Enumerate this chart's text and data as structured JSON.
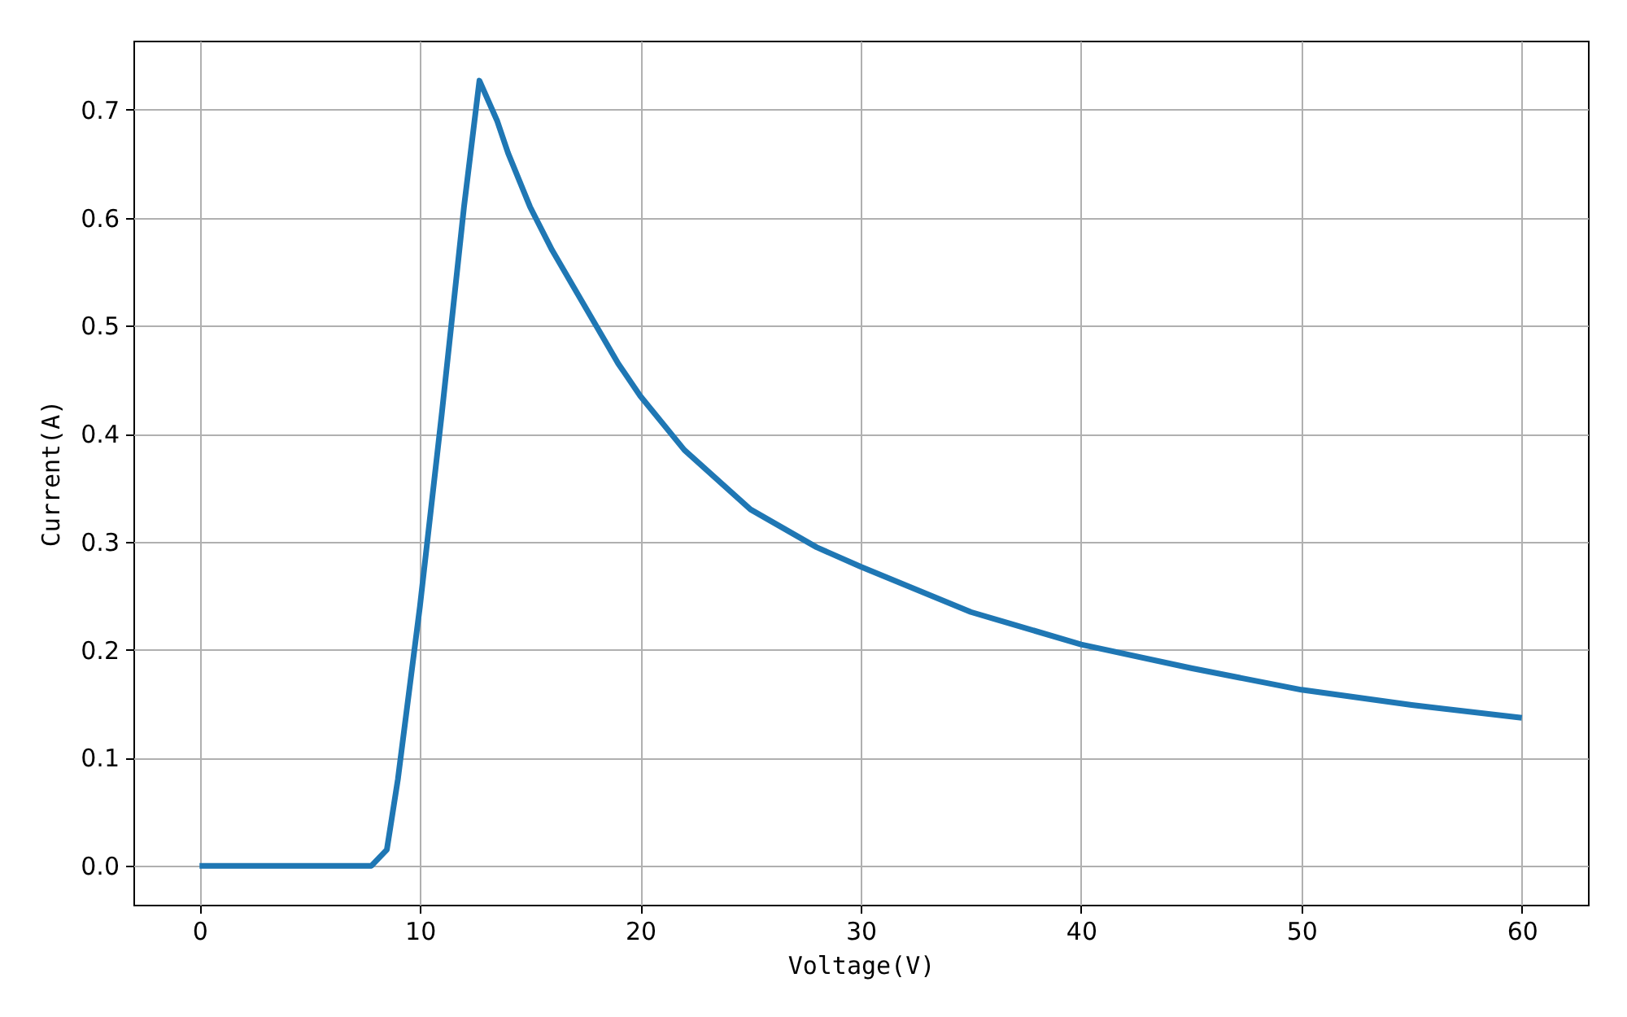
{
  "chart_data": {
    "type": "line",
    "xlabel": "Voltage(V)",
    "ylabel": "Current(A)",
    "x": [
      0,
      7.8,
      8.5,
      9,
      10,
      11,
      12,
      12.7,
      13.5,
      14,
      15,
      16,
      17,
      18,
      19,
      20,
      22,
      25,
      28,
      30,
      35,
      40,
      45,
      50,
      55,
      60
    ],
    "series": [
      {
        "color": "#1f77b4",
        "values": [
          0,
          0,
          0.015,
          0.08,
          0.24,
          0.42,
          0.61,
          0.727,
          0.69,
          0.66,
          0.61,
          0.57,
          0.535,
          0.5,
          0.465,
          0.435,
          0.385,
          0.33,
          0.295,
          0.277,
          0.235,
          0.205,
          0.183,
          0.163,
          0.149,
          0.137
        ]
      }
    ],
    "xlim": [
      -3,
      63
    ],
    "ylim": [
      -0.036,
      0.764
    ],
    "xticks": [
      0,
      10,
      20,
      30,
      40,
      50,
      60
    ],
    "yticks": [
      {
        "value": 0,
        "label": "0.0"
      },
      0.1,
      0.2,
      0.3,
      0.4,
      0.5,
      0.6,
      0.7
    ],
    "grid": true
  }
}
